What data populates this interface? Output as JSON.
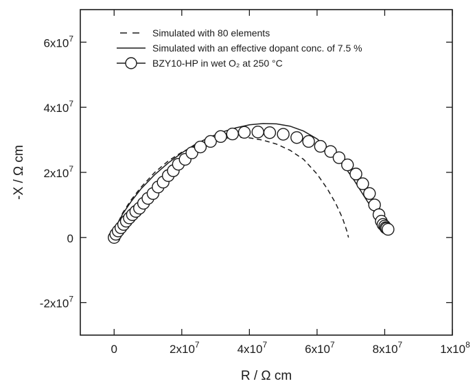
{
  "chart_data": {
    "type": "scatter",
    "xlabel": "R / Ω cm",
    "ylabel": "-X / Ω cm",
    "xlim": [
      -10000000,
      100000000
    ],
    "ylim": [
      -30000000,
      70000000
    ],
    "x_ticks": [
      {
        "value": 0,
        "base": "0",
        "exp": ""
      },
      {
        "value": 20000000,
        "base": "2x10",
        "exp": "7"
      },
      {
        "value": 40000000,
        "base": "4x10",
        "exp": "7"
      },
      {
        "value": 60000000,
        "base": "6x10",
        "exp": "7"
      },
      {
        "value": 80000000,
        "base": "8x10",
        "exp": "7"
      },
      {
        "value": 100000000,
        "base": "1x10",
        "exp": "8"
      }
    ],
    "y_ticks": [
      {
        "value": -20000000,
        "base": "-2x10",
        "exp": "7"
      },
      {
        "value": 0,
        "base": "0",
        "exp": ""
      },
      {
        "value": 20000000,
        "base": "2x10",
        "exp": "7"
      },
      {
        "value": 40000000,
        "base": "4x10",
        "exp": "7"
      },
      {
        "value": 60000000,
        "base": "6x10",
        "exp": "7"
      }
    ],
    "legend_position": "top-left",
    "series": [
      {
        "name": "Simulated with 80 elements",
        "style": "dashed",
        "color": "#1a1a1a",
        "x": [
          0,
          1000000,
          2500000,
          5000000,
          8000000,
          12000000,
          16000000,
          20000000,
          24000000,
          28000000,
          32000000,
          36000000,
          40000000,
          44000000,
          48000000,
          52000000,
          56000000,
          60000000,
          63000000,
          65500000,
          67500000,
          68800000,
          69300000
        ],
        "y": [
          0,
          4200000,
          7500000,
          11500000,
          15500000,
          20000000,
          23500000,
          26200000,
          28200000,
          29600000,
          30400000,
          30800000,
          30600000,
          29900000,
          28700000,
          26800000,
          24000000,
          19500000,
          15000000,
          10500000,
          6000000,
          2000000,
          0
        ]
      },
      {
        "name": "Simulated with an effective dopant conc. of 7.5 %",
        "style": "solid",
        "color": "#1a1a1a",
        "x": [
          0,
          1000000,
          2500000,
          5000000,
          8000000,
          12000000,
          16000000,
          20000000,
          24000000,
          28000000,
          32000000,
          36000000,
          40000000,
          44000000,
          48000000,
          52000000,
          56000000,
          60000000,
          64000000,
          68000000,
          71000000,
          74000000,
          76500000,
          78500000,
          80000000,
          81000000
        ],
        "y": [
          0,
          4000000,
          7200000,
          11000000,
          15000000,
          19300000,
          22900000,
          26000000,
          28600000,
          30700000,
          32400000,
          33700000,
          34600000,
          35000000,
          34900000,
          34200000,
          32700000,
          30300000,
          26800000,
          22000000,
          17500000,
          12500000,
          8500000,
          5000000,
          2500000,
          1200000
        ]
      },
      {
        "name": "BZY10-HP in wet O₂ at 250 °C",
        "style": "markers",
        "color": "#1a1a1a",
        "x": [
          0,
          500000,
          1200000,
          2000000,
          2800000,
          3600000,
          4500000,
          5400000,
          6400000,
          7500000,
          8700000,
          10000000,
          11500000,
          13000000,
          14500000,
          16000000,
          17500000,
          19000000,
          21000000,
          23000000,
          25500000,
          28500000,
          31500000,
          35000000,
          38500000,
          42500000,
          46000000,
          50000000,
          54000000,
          57500000,
          61000000,
          64000000,
          66500000,
          69000000,
          71500000,
          73500000,
          75500000,
          77000000,
          78300000,
          79000000,
          79500000,
          80000000,
          80300000,
          80600000,
          81000000
        ],
        "y": [
          0,
          1000000,
          2000000,
          3000000,
          4000000,
          5000000,
          6000000,
          7000000,
          8000000,
          9000000,
          10500000,
          12000000,
          13500000,
          15500000,
          17000000,
          19000000,
          20500000,
          22500000,
          24000000,
          26000000,
          27800000,
          29500000,
          31000000,
          31800000,
          32300000,
          32400000,
          32200000,
          31700000,
          30700000,
          29500000,
          28000000,
          26400000,
          24500000,
          22300000,
          19500000,
          16500000,
          13500000,
          10000000,
          7000000,
          5000000,
          4000000,
          3500000,
          3000000,
          2800000,
          2500000
        ]
      }
    ]
  }
}
